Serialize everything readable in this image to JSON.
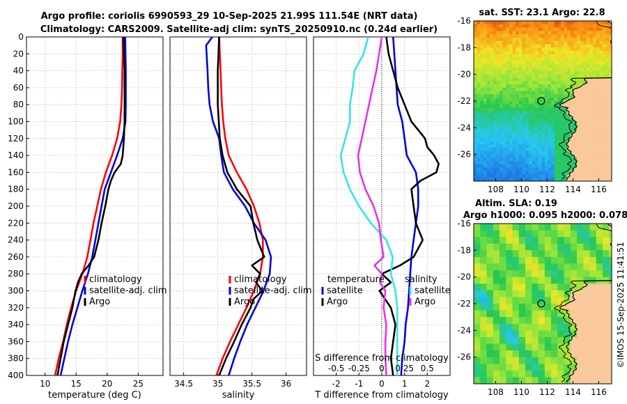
{
  "figure": {
    "title_line1": "Argo profile: coriolis 6990593_29 10-Sep-2025 21.99S 111.54E (NRT data)",
    "title_line2": "Climatology: CARS2009. Satellite-adj clim: synTS_20250910.nc (0.24d earlier)",
    "credit": "©IMOS 15-Sep-2025 11:41:51"
  },
  "colors": {
    "climatology": "#ff0000",
    "satellite": "#0000dd",
    "argo": "#000000",
    "sat_salinity": "#33e6e6",
    "clim_salinity": "#e632e6",
    "land": "#f9c89b"
  },
  "chart_data": [
    {
      "type": "line",
      "name": "temperature",
      "xlabel": "temperature (deg C)",
      "ylabel": "",
      "xlim": [
        7,
        29
      ],
      "ylim": [
        400,
        0
      ],
      "xticks": [
        10,
        15,
        20,
        25
      ],
      "yticks": [
        0,
        20,
        40,
        60,
        80,
        100,
        120,
        140,
        160,
        180,
        200,
        220,
        240,
        260,
        280,
        300,
        320,
        340,
        360,
        380,
        400
      ],
      "grid": true,
      "legend": [
        "climatology",
        "satellite-adj. clim",
        "Argo"
      ],
      "legend_position": "lower-right",
      "series": [
        {
          "name": "climatology",
          "depth": [
            0,
            20,
            40,
            60,
            80,
            100,
            120,
            140,
            160,
            180,
            200,
            220,
            240,
            260,
            280,
            300,
            320,
            340,
            360,
            380,
            400
          ],
          "values": [
            22.5,
            22.5,
            22.45,
            22.4,
            22.3,
            22.1,
            21.6,
            20.8,
            19.8,
            19.0,
            18.4,
            17.8,
            17.3,
            16.8,
            16.0,
            15.0,
            14.2,
            13.5,
            12.9,
            12.2,
            11.6
          ]
        },
        {
          "name": "satellite-adj. clim",
          "depth": [
            0,
            20,
            40,
            60,
            80,
            100,
            120,
            140,
            160,
            180,
            200,
            220,
            240,
            260,
            280,
            300,
            320,
            340,
            360,
            380,
            400
          ],
          "values": [
            22.9,
            22.95,
            23.0,
            23.0,
            23.0,
            22.95,
            22.5,
            21.6,
            20.6,
            19.6,
            19.1,
            18.6,
            18.1,
            17.6,
            16.9,
            16.0,
            15.2,
            14.4,
            13.7,
            13.1,
            12.5
          ]
        },
        {
          "name": "Argo",
          "depth": [
            0,
            20,
            40,
            60,
            80,
            100,
            120,
            140,
            150,
            160,
            170,
            180,
            200,
            220,
            240,
            260,
            270,
            280,
            290,
            300,
            320,
            340,
            360,
            380,
            400
          ],
          "values": [
            22.6,
            22.7,
            22.8,
            22.8,
            22.8,
            22.8,
            22.7,
            22.5,
            22.2,
            21.2,
            20.6,
            20.2,
            19.7,
            19.1,
            18.6,
            17.9,
            17.0,
            15.9,
            15.3,
            14.9,
            14.4,
            13.7,
            13.0,
            12.5,
            12.0
          ]
        }
      ]
    },
    {
      "type": "line",
      "name": "salinity",
      "xlabel": "salinity",
      "ylabel": "",
      "xlim": [
        34.3,
        36.3
      ],
      "ylim": [
        400,
        0
      ],
      "xticks": [
        34.5,
        35,
        35.5,
        36
      ],
      "xticklabels": [
        "34.5",
        "35",
        "35.5",
        "36"
      ],
      "grid": true,
      "legend": [
        "climatology",
        "satellite-adj. clim",
        "Argo"
      ],
      "legend_position": "lower-right",
      "series": [
        {
          "name": "climatology",
          "depth": [
            0,
            40,
            80,
            100,
            120,
            140,
            160,
            180,
            200,
            220,
            240,
            260,
            280,
            300,
            320,
            340,
            360,
            380,
            400
          ],
          "values": [
            35.02,
            35.04,
            35.06,
            35.08,
            35.11,
            35.16,
            35.28,
            35.42,
            35.53,
            35.61,
            35.66,
            35.66,
            35.62,
            35.53,
            35.42,
            35.3,
            35.18,
            35.07,
            34.98
          ]
        },
        {
          "name": "satellite-adj. clim",
          "depth": [
            0,
            10,
            40,
            60,
            80,
            100,
            120,
            140,
            160,
            180,
            200,
            220,
            240,
            260,
            280,
            300,
            320,
            340,
            360,
            380,
            400
          ],
          "values": [
            34.92,
            34.83,
            34.85,
            34.86,
            34.88,
            34.93,
            35.02,
            35.05,
            35.09,
            35.22,
            35.4,
            35.53,
            35.7,
            35.78,
            35.76,
            35.67,
            35.55,
            35.43,
            35.33,
            35.24,
            35.16
          ]
        },
        {
          "name": "Argo",
          "depth": [
            0,
            40,
            80,
            120,
            140,
            160,
            170,
            180,
            200,
            220,
            240,
            260,
            270,
            280,
            290,
            300,
            310,
            320,
            340,
            360,
            380,
            400
          ],
          "values": [
            35.02,
            35.0,
            35.0,
            35.03,
            35.07,
            35.14,
            35.21,
            35.28,
            35.48,
            35.52,
            35.58,
            35.68,
            35.5,
            35.62,
            35.56,
            35.65,
            35.52,
            35.48,
            35.35,
            35.24,
            35.12,
            35.02
          ]
        }
      ]
    },
    {
      "type": "line",
      "name": "difference from climatology",
      "xlabel": "T difference from climatology",
      "x2label": "S difference from climatology",
      "xlim": [
        -3,
        3
      ],
      "ylim": [
        400,
        0
      ],
      "xticks": [
        -2,
        -1,
        0,
        1,
        2
      ],
      "x2ticklabels": [
        "-0.5",
        "-0.25",
        "0",
        "0.25",
        "0.5"
      ],
      "grid": true,
      "legend": [
        "temperature",
        "satellite",
        "Argo",
        "salinity",
        "satellite",
        "Argo"
      ],
      "series": [
        {
          "name": "T satellite",
          "depth": [
            0,
            20,
            40,
            60,
            80,
            100,
            120,
            140,
            160,
            180,
            200,
            220,
            240,
            260,
            280,
            300,
            320,
            340,
            360,
            380,
            400
          ],
          "values": [
            0.5,
            0.55,
            0.6,
            0.65,
            0.7,
            0.9,
            1.0,
            1.1,
            1.5,
            1.6,
            1.6,
            1.5,
            1.4,
            1.3,
            1.25,
            1.2,
            1.15,
            1.05,
            1.0,
            0.9,
            0.85
          ]
        },
        {
          "name": "T Argo",
          "depth": [
            0,
            20,
            40,
            60,
            80,
            100,
            120,
            130,
            140,
            150,
            160,
            170,
            180,
            200,
            220,
            240,
            260,
            270,
            280,
            290,
            300,
            320,
            340,
            360,
            380,
            400
          ],
          "values": [
            0.2,
            0.3,
            0.5,
            0.7,
            1.0,
            1.3,
            1.9,
            2.0,
            2.3,
            2.5,
            2.4,
            1.7,
            1.3,
            1.4,
            1.5,
            1.8,
            1.4,
            0.8,
            0.0,
            0.4,
            -0.1,
            0.4,
            0.6,
            0.5,
            0.4,
            0.5
          ]
        },
        {
          "name": "S satellite",
          "depth": [
            0,
            20,
            40,
            60,
            80,
            100,
            120,
            140,
            160,
            180,
            200,
            220,
            240,
            260,
            280,
            300,
            320,
            340,
            360,
            380,
            400
          ],
          "values": [
            -0.15,
            -0.2,
            -0.3,
            -0.32,
            -0.35,
            -0.35,
            -0.4,
            -0.45,
            -0.42,
            -0.35,
            -0.25,
            -0.12,
            0.05,
            0.12,
            0.1,
            0.15,
            0.17,
            0.17,
            0.17,
            0.17,
            0.17
          ]
        },
        {
          "name": "S Argo",
          "depth": [
            0,
            20,
            40,
            60,
            80,
            100,
            120,
            140,
            160,
            180,
            200,
            220,
            240,
            260,
            270,
            280,
            290,
            300,
            320,
            340,
            360,
            380,
            400
          ],
          "values": [
            0.0,
            -0.03,
            -0.06,
            -0.1,
            -0.14,
            -0.18,
            -0.22,
            -0.26,
            -0.24,
            -0.18,
            -0.09,
            -0.03,
            -0.01,
            0.02,
            -0.08,
            0.0,
            -0.02,
            0.04,
            0.02,
            0.05,
            0.04,
            0.04,
            0.05
          ]
        }
      ]
    },
    {
      "type": "heatmap",
      "name": "sat_sst_map",
      "title": "sat. SST: 23.1  Argo: 22.8",
      "xlim": [
        106.3,
        117.0
      ],
      "ylim": [
        -28.0,
        -16.0
      ],
      "xticks": [
        108,
        110,
        112,
        114,
        116
      ],
      "yticks": [
        -16,
        -18,
        -20,
        -22,
        -24,
        -26
      ],
      "marker": {
        "lon": 111.54,
        "lat": -21.99
      }
    },
    {
      "type": "heatmap",
      "name": "altimetry_map",
      "title": "Altim. SLA: 0.19",
      "subtitle": "Argo h1000: 0.095  h2000: 0.078",
      "xlim": [
        106.3,
        117.0
      ],
      "ylim": [
        -28.0,
        -16.0
      ],
      "xticks": [
        108,
        110,
        112,
        114,
        116
      ],
      "yticks": [
        -16,
        -18,
        -20,
        -22,
        -24,
        -26
      ],
      "marker": {
        "lon": 111.54,
        "lat": -21.99
      }
    }
  ]
}
